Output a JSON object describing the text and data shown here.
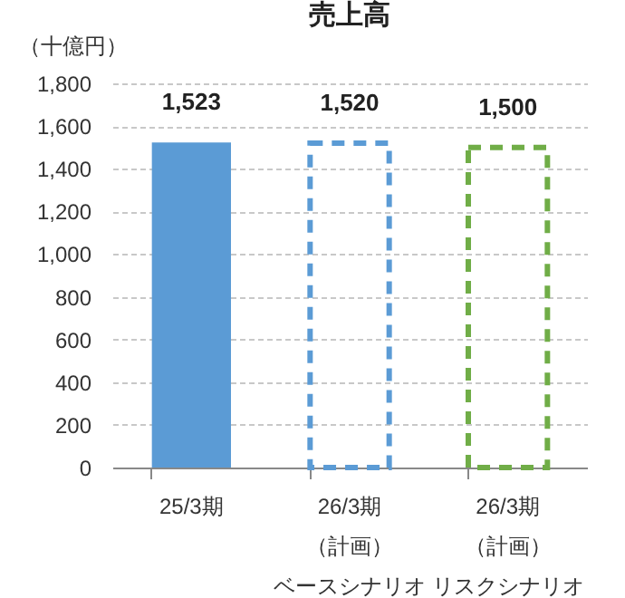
{
  "chart_data": {
    "type": "bar",
    "title": "売上高",
    "ylabel": "（十億円）",
    "categories": [
      "25/3期",
      "26/3期（計画）ベースシナリオ",
      "26/3期（計画）リスクシナリオ"
    ],
    "series": [
      {
        "color": "#5b9bd5",
        "values": [
          1523,
          null,
          null
        ],
        "value_labels": [
          "1,523",
          null,
          null
        ]
      },
      {
        "color": "#5b9bd5",
        "line_style": "dashed",
        "values": [
          null,
          1520,
          null
        ],
        "value_labels": [
          null,
          "1,520",
          null
        ]
      },
      {
        "color": "#70ad47",
        "line_style": "dashed",
        "values": [
          null,
          null,
          1500
        ],
        "value_labels": [
          null,
          null,
          "1,500"
        ]
      }
    ],
    "ylim": [
      0,
      1800
    ],
    "yticks": [
      {
        "value": 0,
        "label": "0"
      },
      {
        "value": 200,
        "label": "200"
      },
      {
        "value": 400,
        "label": "400"
      },
      {
        "value": 600,
        "label": "600"
      },
      {
        "value": 800,
        "label": "800"
      },
      {
        "value": 1000,
        "label": "1,000"
      },
      {
        "value": 1200,
        "label": "1,200"
      },
      {
        "value": 1400,
        "label": "1,400"
      },
      {
        "value": 1600,
        "label": "1,600"
      },
      {
        "value": 1800,
        "label": "1,800"
      }
    ],
    "grid": "y"
  }
}
